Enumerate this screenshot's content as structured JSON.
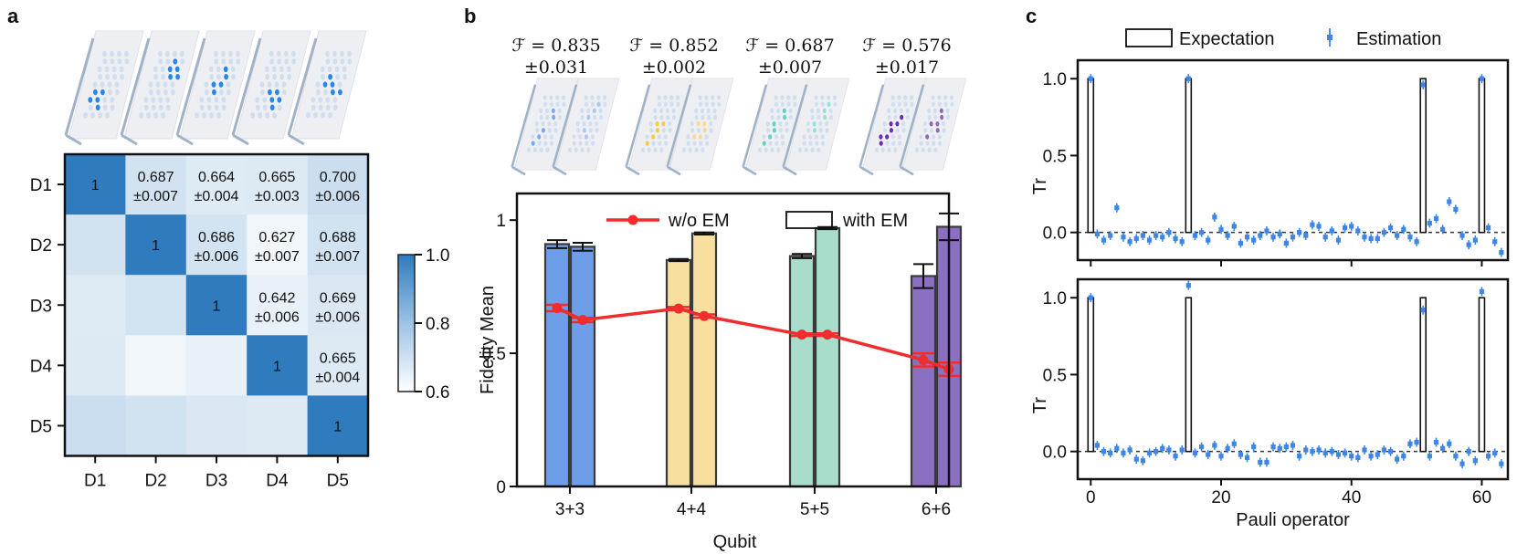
{
  "chart_data": [
    {
      "type": "heatmap",
      "panel": "a",
      "labels": [
        "D1",
        "D2",
        "D3",
        "D4",
        "D5"
      ],
      "matrix": [
        [
          1,
          0.687,
          0.664,
          0.665,
          0.7
        ],
        [
          0.687,
          1,
          0.686,
          0.627,
          0.688
        ],
        [
          0.664,
          0.686,
          1,
          0.642,
          0.669
        ],
        [
          0.665,
          0.627,
          0.642,
          1,
          0.665
        ],
        [
          0.7,
          0.688,
          0.669,
          0.665,
          1
        ]
      ],
      "cell_text": [
        [
          "1",
          "0.687\n±0.007",
          "0.664\n±0.004",
          "0.665\n±0.003",
          "0.700\n±0.006"
        ],
        [
          "",
          "1",
          "0.686\n±0.006",
          "0.627\n±0.007",
          "0.688\n±0.007"
        ],
        [
          "",
          "",
          "1",
          "0.642\n±0.006",
          "0.669\n±0.006"
        ],
        [
          "",
          "",
          "",
          "1",
          "0.665\n±0.004"
        ],
        [
          "",
          "",
          "",
          "",
          "1"
        ]
      ],
      "colorbar": {
        "min": 0.6,
        "max": 1.0,
        "ticks": [
          "0.6",
          "0.8",
          "1.0"
        ]
      }
    },
    {
      "type": "bar",
      "panel": "b",
      "categories": [
        "3+3",
        "4+4",
        "5+5",
        "6+6"
      ],
      "xlabel": "Qubit",
      "ylabel": "Fidelity Mean",
      "ylim": [
        0,
        1.1
      ],
      "yticks": [
        "0",
        "0.5",
        "1"
      ],
      "legend": [
        "w/o EM",
        "with EM"
      ],
      "fidelity_labels": [
        [
          "ℱ = 0.835",
          "±0.031"
        ],
        [
          "ℱ = 0.852",
          "±0.002"
        ],
        [
          "ℱ = 0.687",
          "±0.007"
        ],
        [
          "ℱ = 0.576",
          "±0.017"
        ]
      ],
      "colors": [
        "#6f9ee8",
        "#f7df9f",
        "#a8dccb",
        "#8b6fc0"
      ],
      "series": [
        {
          "name": "with EM",
          "values": [
            [
              0.91,
              0.9
            ],
            [
              0.85,
              0.95
            ],
            [
              0.865,
              0.97
            ],
            [
              0.79,
              0.975
            ]
          ],
          "errors": [
            [
              0.015,
              0.015
            ],
            [
              0.004,
              0.004
            ],
            [
              0.008,
              0.004
            ],
            [
              0.045,
              0.05
            ]
          ]
        },
        {
          "name": "w/o EM",
          "values": [
            [
              0.67,
              0.625
            ],
            [
              0.668,
              0.64
            ],
            [
              0.57,
              0.57
            ],
            [
              0.475,
              0.44
            ]
          ],
          "errors": [
            [
              0.012,
              0.008
            ],
            [
              0.006,
              0.006
            ],
            [
              0.005,
              0.005
            ],
            [
              0.025,
              0.025
            ]
          ]
        }
      ]
    },
    {
      "type": "bar+scatter",
      "panel": "c",
      "xlabel": "Pauli operator",
      "ylabel": "Tr",
      "xlim": [
        -2,
        64
      ],
      "ylim": [
        -0.18,
        1.12
      ],
      "xticks": [
        "0",
        "20",
        "40",
        "60"
      ],
      "yticks": [
        "0.0",
        "0.5",
        "1.0"
      ],
      "legend": [
        "Expectation",
        "Estimation"
      ],
      "expectation_indices": [
        0,
        15,
        51,
        60
      ],
      "top_estimation": [
        1.0,
        -0.01,
        -0.05,
        -0.02,
        0.16,
        -0.03,
        -0.06,
        -0.04,
        -0.02,
        -0.05,
        -0.02,
        -0.03,
        0.0,
        -0.04,
        -0.06,
        1.0,
        -0.02,
        0.0,
        -0.05,
        0.1,
        0.02,
        -0.02,
        0.04,
        -0.07,
        -0.03,
        -0.05,
        -0.02,
        0.01,
        -0.03,
        -0.01,
        -0.07,
        -0.03,
        0.0,
        -0.02,
        0.05,
        0.04,
        -0.03,
        0.01,
        -0.05,
        0.03,
        0.04,
        0.01,
        -0.03,
        -0.04,
        -0.04,
        0.0,
        0.03,
        -0.02,
        0.02,
        -0.03,
        -0.06,
        0.96,
        0.06,
        0.09,
        0.02,
        0.2,
        0.15,
        -0.02,
        -0.08,
        -0.05,
        1.0,
        0.03,
        -0.06,
        -0.13
      ],
      "bottom_estimation": [
        1.0,
        0.04,
        0.0,
        -0.01,
        0.02,
        -0.01,
        0.01,
        -0.05,
        -0.06,
        -0.01,
        0.0,
        0.02,
        0.01,
        -0.03,
        0.01,
        1.08,
        -0.01,
        0.03,
        -0.02,
        0.04,
        -0.03,
        0.02,
        0.05,
        -0.02,
        -0.04,
        0.03,
        -0.07,
        -0.07,
        0.03,
        0.02,
        0.03,
        0.04,
        -0.03,
        0.01,
        0.0,
        0.01,
        -0.01,
        0.0,
        -0.02,
        -0.01,
        -0.03,
        -0.04,
        0.01,
        -0.03,
        -0.02,
        0.01,
        0.0,
        -0.05,
        -0.03,
        0.05,
        0.06,
        0.92,
        -0.03,
        0.06,
        0.02,
        0.05,
        -0.03,
        -0.08,
        0.0,
        -0.06,
        1.04,
        -0.03,
        -0.01,
        -0.08
      ]
    }
  ],
  "panels": {
    "a": "a",
    "b": "b",
    "c": "c"
  },
  "colors": {
    "heat_dark": "#2f7bbd",
    "heat_light": "#ffffff",
    "wo_em_line": "#f02c2c",
    "estimation": "#3d86e6"
  }
}
